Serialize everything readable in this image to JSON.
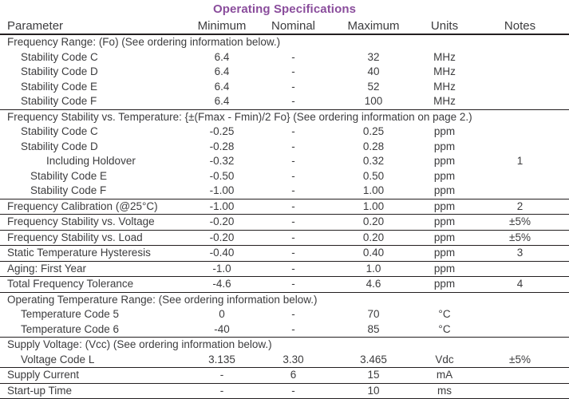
{
  "title": "Operating Specifications",
  "colors": {
    "title_accent": "#8a4d9c",
    "text": "#3c3c3e",
    "rule_line": "#231f20"
  },
  "table": {
    "columns": [
      "Parameter",
      "Minimum",
      "Nominal",
      "Maximum",
      "Units",
      "Notes"
    ],
    "rows": [
      {
        "type": "section",
        "param": "Frequency Range: (Fo) (See ordering information below.)",
        "indent": 0,
        "rule": false
      },
      {
        "type": "data",
        "indent": 1,
        "param": "Stability Code C",
        "min": "6.4",
        "nom": "-",
        "max": "32",
        "units": "MHz",
        "notes": "",
        "rule": false
      },
      {
        "type": "data",
        "indent": 1,
        "param": "Stability Code D",
        "min": "6.4",
        "nom": "-",
        "max": "40",
        "units": "MHz",
        "notes": "",
        "rule": false
      },
      {
        "type": "data",
        "indent": 1,
        "param": "Stability Code E",
        "min": "6.4",
        "nom": "-",
        "max": "52",
        "units": "MHz",
        "notes": "",
        "rule": false
      },
      {
        "type": "data",
        "indent": 1,
        "param": "Stability Code F",
        "min": "6.4",
        "nom": "-",
        "max": "100",
        "units": "MHz",
        "notes": "",
        "rule": true
      },
      {
        "type": "section",
        "param": "Frequency Stability vs. Temperature: {±(Fmax - Fmin)/2 Fo} (See ordering information on page 2.)",
        "indent": 0,
        "rule": false
      },
      {
        "type": "data",
        "indent": 1,
        "param": "Stability Code C",
        "min": "-0.25",
        "nom": "-",
        "max": "0.25",
        "units": "ppm",
        "notes": "",
        "rule": false
      },
      {
        "type": "data",
        "indent": 1,
        "param": "Stability Code D",
        "min": "-0.28",
        "nom": "-",
        "max": "0.28",
        "units": "ppm",
        "notes": "",
        "rule": false
      },
      {
        "type": "data",
        "indent": 3,
        "param": "Including Holdover",
        "min": "-0.32",
        "nom": "-",
        "max": "0.32",
        "units": "ppm",
        "notes": "1",
        "rule": false
      },
      {
        "type": "data",
        "indent": 2,
        "param": "Stability Code E",
        "min": "-0.50",
        "nom": "-",
        "max": "0.50",
        "units": "ppm",
        "notes": "",
        "rule": false
      },
      {
        "type": "data",
        "indent": 2,
        "param": "Stability Code F",
        "min": "-1.00",
        "nom": "-",
        "max": "1.00",
        "units": "ppm",
        "notes": "",
        "rule": true
      },
      {
        "type": "data",
        "indent": 0,
        "param": "Frequency Calibration (@25°C)",
        "min": "-1.00",
        "nom": "-",
        "max": "1.00",
        "units": "ppm",
        "notes": "2",
        "rule": true
      },
      {
        "type": "data",
        "indent": 0,
        "param": "Frequency Stability vs. Voltage",
        "min": "-0.20",
        "nom": "-",
        "max": "0.20",
        "units": "ppm",
        "notes": "±5%",
        "rule": true
      },
      {
        "type": "data",
        "indent": 0,
        "param": "Frequency Stability vs. Load",
        "min": "-0.20",
        "nom": "-",
        "max": "0.20",
        "units": "ppm",
        "notes": "±5%",
        "rule": true
      },
      {
        "type": "data",
        "indent": 0,
        "param": "Static Temperature Hysteresis",
        "min": "-0.40",
        "nom": "-",
        "max": "0.40",
        "units": "ppm",
        "notes": "3",
        "rule": true
      },
      {
        "type": "data",
        "indent": 0,
        "param": "Aging: First Year",
        "min": "-1.0",
        "nom": "-",
        "max": "1.0",
        "units": "ppm",
        "notes": "",
        "rule": true
      },
      {
        "type": "data",
        "indent": 0,
        "param": "Total Frequency Tolerance",
        "min": "-4.6",
        "nom": "-",
        "max": "4.6",
        "units": "ppm",
        "notes": "4",
        "rule": true
      },
      {
        "type": "section",
        "param": "Operating Temperature Range: (See ordering information below.)",
        "indent": 0,
        "rule": false
      },
      {
        "type": "data",
        "indent": 1,
        "param": "Temperature Code 5",
        "min": "0",
        "nom": "-",
        "max": "70",
        "units": "°C",
        "notes": "",
        "rule": false
      },
      {
        "type": "data",
        "indent": 1,
        "param": "Temperature Code 6",
        "min": "-40",
        "nom": "-",
        "max": "85",
        "units": "°C",
        "notes": "",
        "rule": true
      },
      {
        "type": "section",
        "param": "Supply Voltage: (Vcc) (See ordering information below.)",
        "indent": 0,
        "rule": false
      },
      {
        "type": "data",
        "indent": 1,
        "param": "Voltage Code L",
        "min": "3.135",
        "nom": "3.30",
        "max": "3.465",
        "units": "Vdc",
        "notes": "±5%",
        "rule": true
      },
      {
        "type": "data",
        "indent": 0,
        "param": "Supply Current",
        "min": "-",
        "nom": "6",
        "max": "15",
        "units": "mA",
        "notes": "",
        "rule": true
      },
      {
        "type": "data",
        "indent": 0,
        "param": "Start-up Time",
        "min": "-",
        "nom": "-",
        "max": "10",
        "units": "ms",
        "notes": "",
        "rule": true
      }
    ]
  }
}
